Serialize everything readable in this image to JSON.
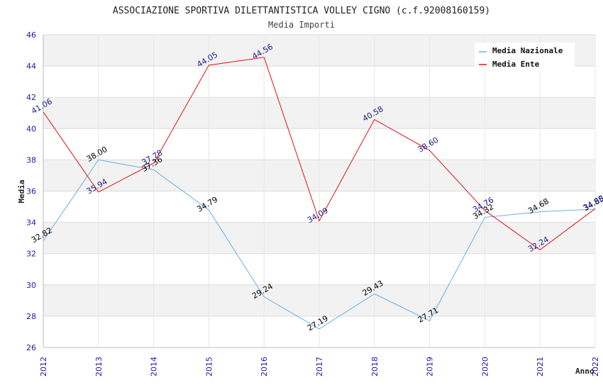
{
  "chart_data": {
    "type": "line",
    "title": "ASSOCIAZIONE SPORTIVA DILETTANTISTICA VOLLEY CIGNO (c.f.92008160159)",
    "subtitle": "Media Importi",
    "xlabel": "Anno",
    "ylabel": "Media",
    "ylim": [
      26,
      46
    ],
    "yticks": [
      "26",
      "28",
      "30",
      "32",
      "34",
      "36",
      "38",
      "40",
      "42",
      "44",
      "46"
    ],
    "categories": [
      "2012",
      "2013",
      "2014",
      "2015",
      "2016",
      "2017",
      "2018",
      "2019",
      "2020",
      "2021",
      "2022"
    ],
    "series": [
      {
        "name": "Media Nazionale",
        "color": "#6aaee6",
        "label_color": "#000000",
        "values": [
          32.82,
          38.0,
          37.36,
          34.79,
          29.24,
          27.19,
          29.43,
          27.71,
          34.32,
          34.68,
          34.85
        ],
        "labels": [
          "32.82",
          "38.00",
          "37.36",
          "34.79",
          "29.24",
          "27.19",
          "29.43",
          "27.71",
          "34.32",
          "34.68",
          "34.85"
        ]
      },
      {
        "name": "Media Ente",
        "color": "#e0121b",
        "label_color": "#1a1a8c",
        "values": [
          41.06,
          35.94,
          37.78,
          44.05,
          44.56,
          34.09,
          40.58,
          38.6,
          34.76,
          32.24,
          34.88
        ],
        "labels": [
          "41.06",
          "35.94",
          "37.78",
          "44.05",
          "44.56",
          "34.09",
          "40.58",
          "38.60",
          "34.76",
          "32.24",
          "34.88"
        ]
      }
    ],
    "grid": true,
    "legend_position": "top-right"
  }
}
